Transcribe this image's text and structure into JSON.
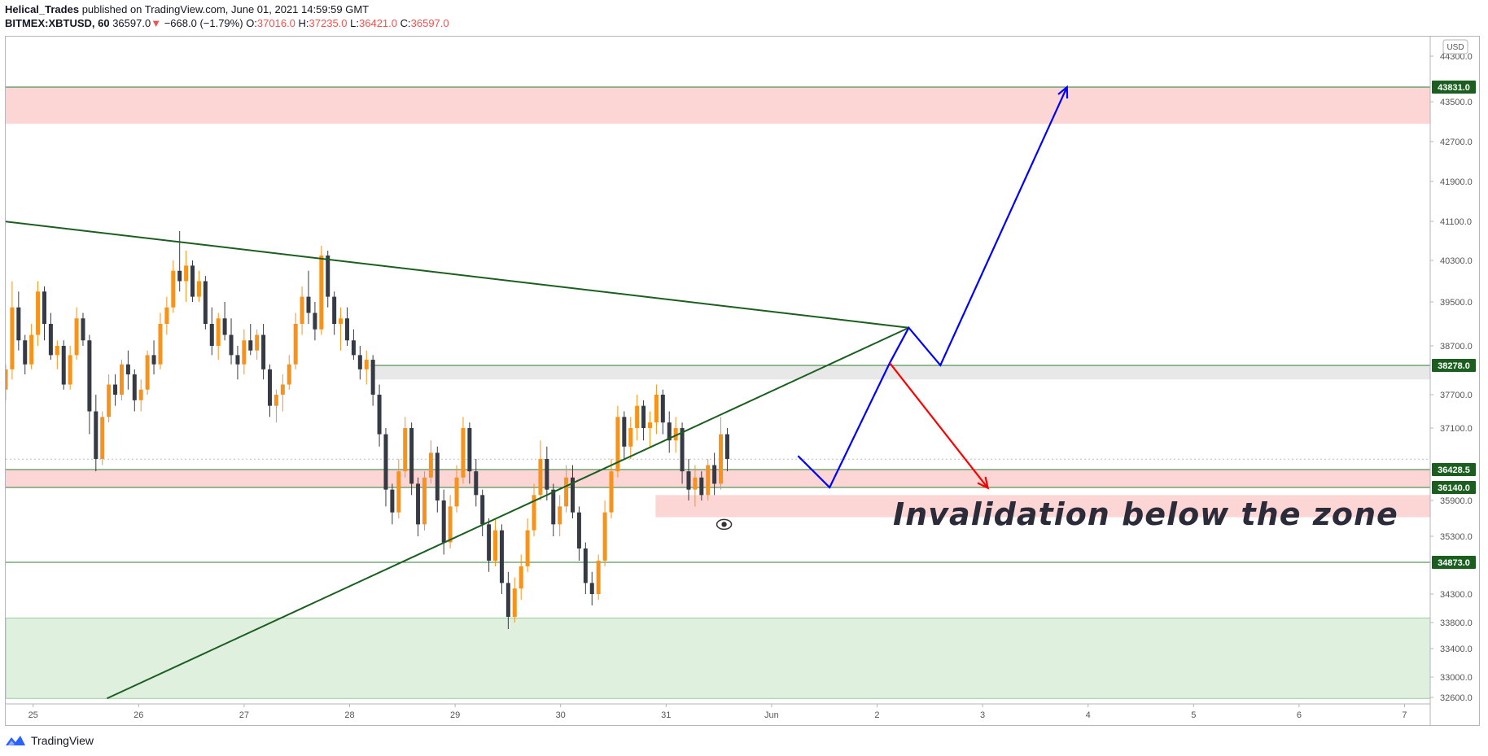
{
  "header": {
    "author": "Helical_Trades",
    "published": "published on TradingView.com, June 01, 2021 14:59:59 GMT",
    "symbol": "BITMEX:XBTUSD, 60",
    "last": "36597.0",
    "change_arrow": "▼",
    "change": "−668.0 (−1.79%)",
    "o_label": "O:",
    "o_value": "37016.0",
    "h_label": "H:",
    "h_value": "37235.0",
    "l_label": "L:",
    "l_value": "36421.0",
    "c_label": "C:",
    "c_value": "36597.0"
  },
  "footer": {
    "brand": "TradingView",
    "icon": "tradingview-logo-icon"
  },
  "colors": {
    "up": "#f7931a",
    "down": "#363a45",
    "resistance_zone": "#fcd5d5",
    "support_zone": "#dff0df",
    "trendline": "#1b5e20",
    "projection_up": "#0000ff",
    "projection_down": "#ff0000",
    "level_label_bg": "#1b5e20"
  },
  "chart_data": {
    "type": "candlestick",
    "currency": "USD",
    "ylim": [
      32500,
      44400
    ],
    "x_ticks": [
      "25",
      "26",
      "27",
      "28",
      "29",
      "30",
      "31",
      "Jun",
      "2",
      "3",
      "4",
      "5",
      "6",
      "7"
    ],
    "y_ticks": [
      "44300.0",
      "43500.0",
      "42700.0",
      "41900.0",
      "41100.0",
      "40300.0",
      "39500.0",
      "38700.0",
      "37700.0",
      "37100.0",
      "35900.0",
      "35300.0",
      "34300.0",
      "33800.0",
      "33400.0",
      "33000.0",
      "32600.0"
    ],
    "price_levels": [
      "43831.0",
      "38278.0",
      "36428.5",
      "36140.0",
      "34873.0"
    ],
    "annotation": "Invalidation below the zone",
    "annotation_icon": "eye-icon",
    "zones": [
      {
        "kind": "resistance",
        "from": 43060,
        "to": 43831
      },
      {
        "kind": "resistance",
        "from": 36140,
        "to": 36428.5
      },
      {
        "kind": "resistance",
        "from": 35620,
        "to": 36000
      },
      {
        "kind": "neutral",
        "from": 38000,
        "to": 38278
      },
      {
        "kind": "support",
        "from": 32580,
        "to": 33880
      }
    ],
    "trendlines": [
      {
        "name": "descending",
        "from": {
          "day": 24.0,
          "price": 41280
        },
        "to": {
          "day": 33.3,
          "price": 39030
        }
      },
      {
        "name": "ascending",
        "from": {
          "day": 25.7,
          "price": 32580
        },
        "to": {
          "day": 33.3,
          "price": 39030
        }
      }
    ],
    "projections": [
      {
        "direction": "up",
        "points": [
          [
            32.25,
            36650
          ],
          [
            32.55,
            36140
          ],
          [
            33.12,
            38330
          ],
          [
            33.3,
            39030
          ],
          [
            33.6,
            38280
          ],
          [
            34.8,
            43831
          ]
        ]
      },
      {
        "direction": "down",
        "points": [
          [
            33.12,
            38330
          ],
          [
            34.05,
            36130
          ]
        ]
      }
    ],
    "candles": [
      [
        37800,
        38300,
        37600,
        38200
      ],
      [
        38200,
        39900,
        38000,
        39400
      ],
      [
        39400,
        39700,
        38600,
        38800
      ],
      [
        38800,
        38900,
        38100,
        38300
      ],
      [
        38300,
        39100,
        38200,
        38900
      ],
      [
        38900,
        39900,
        38700,
        39700
      ],
      [
        39700,
        39800,
        38800,
        39100
      ],
      [
        39100,
        39300,
        38400,
        38500
      ],
      [
        38500,
        38800,
        38200,
        38700
      ],
      [
        38700,
        38800,
        37800,
        37900
      ],
      [
        37900,
        38700,
        37800,
        38500
      ],
      [
        38500,
        39400,
        38400,
        39200
      ],
      [
        39200,
        39300,
        38700,
        38800
      ],
      [
        38800,
        38900,
        37000,
        37400
      ],
      [
        37400,
        37700,
        36400,
        36600
      ],
      [
        36600,
        37400,
        36500,
        37300
      ],
      [
        37300,
        38100,
        37200,
        37900
      ],
      [
        37900,
        38100,
        37500,
        37700
      ],
      [
        37700,
        38400,
        37600,
        38300
      ],
      [
        38300,
        38600,
        37800,
        38100
      ],
      [
        38100,
        38200,
        37400,
        37600
      ],
      [
        37600,
        38000,
        37400,
        37800
      ],
      [
        37800,
        38600,
        37700,
        38500
      ],
      [
        38500,
        38800,
        38100,
        38300
      ],
      [
        38300,
        39300,
        38200,
        39100
      ],
      [
        39100,
        39600,
        38900,
        39400
      ],
      [
        39400,
        40300,
        39300,
        40100
      ],
      [
        40100,
        40900,
        39700,
        39900
      ],
      [
        39900,
        40500,
        39500,
        40200
      ],
      [
        40200,
        40300,
        39500,
        39600
      ],
      [
        39600,
        40100,
        39500,
        39900
      ],
      [
        39900,
        40000,
        39000,
        39100
      ],
      [
        39100,
        39400,
        38500,
        38700
      ],
      [
        38700,
        39300,
        38400,
        39200
      ],
      [
        39200,
        39500,
        38800,
        38900
      ],
      [
        38900,
        39200,
        38300,
        38500
      ],
      [
        38500,
        38700,
        38000,
        38300
      ],
      [
        38300,
        39000,
        38100,
        38800
      ],
      [
        38800,
        39100,
        38500,
        38600
      ],
      [
        38600,
        39000,
        38400,
        38900
      ],
      [
        38900,
        39100,
        38000,
        38200
      ],
      [
        38200,
        38300,
        37300,
        37500
      ],
      [
        37500,
        37800,
        37200,
        37700
      ],
      [
        37700,
        38100,
        37400,
        37900
      ],
      [
        37900,
        38500,
        37800,
        38300
      ],
      [
        38300,
        39300,
        38200,
        39100
      ],
      [
        39100,
        39800,
        38900,
        39600
      ],
      [
        39600,
        40100,
        39100,
        39300
      ],
      [
        39300,
        39500,
        38800,
        39000
      ],
      [
        39000,
        40600,
        38900,
        40400
      ],
      [
        40400,
        40500,
        39400,
        39600
      ],
      [
        39600,
        39700,
        38900,
        39100
      ],
      [
        39100,
        39400,
        38600,
        39200
      ],
      [
        39200,
        39400,
        38700,
        38800
      ],
      [
        38800,
        39000,
        38400,
        38500
      ],
      [
        38500,
        38700,
        38000,
        38200
      ],
      [
        38200,
        38600,
        37900,
        38400
      ],
      [
        38400,
        38500,
        37500,
        37700
      ],
      [
        37700,
        37900,
        36800,
        37000
      ],
      [
        37000,
        37100,
        35800,
        36100
      ],
      [
        36100,
        36200,
        35500,
        35700
      ],
      [
        35700,
        36600,
        35600,
        36400
      ],
      [
        36400,
        37300,
        36300,
        37100
      ],
      [
        37100,
        37200,
        36000,
        36200
      ],
      [
        36200,
        36300,
        35300,
        35500
      ],
      [
        35500,
        36400,
        35400,
        36300
      ],
      [
        36300,
        36900,
        36200,
        36700
      ],
      [
        36700,
        36800,
        35700,
        35900
      ],
      [
        35900,
        36100,
        35000,
        35200
      ],
      [
        35200,
        36000,
        35100,
        35800
      ],
      [
        35800,
        36500,
        35700,
        36300
      ],
      [
        36300,
        37300,
        36200,
        37100
      ],
      [
        37100,
        37200,
        36200,
        36400
      ],
      [
        36400,
        36600,
        35800,
        36000
      ],
      [
        36000,
        36100,
        35300,
        35500
      ],
      [
        35500,
        35600,
        34700,
        34900
      ],
      [
        34900,
        35600,
        34800,
        35400
      ],
      [
        35400,
        35500,
        34300,
        34500
      ],
      [
        34500,
        34700,
        33700,
        33900
      ],
      [
        33900,
        34600,
        33800,
        34400
      ],
      [
        34400,
        35000,
        34200,
        34800
      ],
      [
        34800,
        35600,
        34700,
        35400
      ],
      [
        35400,
        36200,
        35300,
        36000
      ],
      [
        36000,
        36900,
        35900,
        36600
      ],
      [
        36600,
        36800,
        35900,
        36100
      ],
      [
        36100,
        36200,
        35300,
        35500
      ],
      [
        35500,
        36000,
        35300,
        35800
      ],
      [
        35800,
        36500,
        35700,
        36300
      ],
      [
        36300,
        36500,
        35600,
        35700
      ],
      [
        35700,
        35800,
        34900,
        35100
      ],
      [
        35100,
        35200,
        34300,
        34500
      ],
      [
        34500,
        34700,
        34100,
        34300
      ],
      [
        34300,
        35000,
        34200,
        34900
      ],
      [
        34900,
        35900,
        34800,
        35700
      ],
      [
        35700,
        36600,
        35600,
        36400
      ],
      [
        36400,
        37500,
        36300,
        37300
      ],
      [
        37300,
        37400,
        36600,
        36800
      ],
      [
        36800,
        37300,
        36600,
        37100
      ],
      [
        37100,
        37700,
        36900,
        37500
      ],
      [
        37500,
        37600,
        36900,
        37100
      ],
      [
        37100,
        37400,
        36800,
        37200
      ],
      [
        37200,
        37900,
        37000,
        37700
      ],
      [
        37700,
        37800,
        37000,
        37200
      ],
      [
        37200,
        37400,
        36700,
        36900
      ],
      [
        36900,
        37300,
        36700,
        37100
      ],
      [
        37100,
        37200,
        36200,
        36400
      ],
      [
        36400,
        36600,
        35900,
        36100
      ],
      [
        36100,
        36500,
        35800,
        36300
      ],
      [
        36300,
        36400,
        35900,
        36000
      ],
      [
        36000,
        36600,
        35900,
        36500
      ],
      [
        36500,
        36700,
        36000,
        36200
      ],
      [
        36200,
        37300,
        36100,
        37000
      ],
      [
        37000,
        37100,
        36400,
        36600
      ]
    ]
  }
}
